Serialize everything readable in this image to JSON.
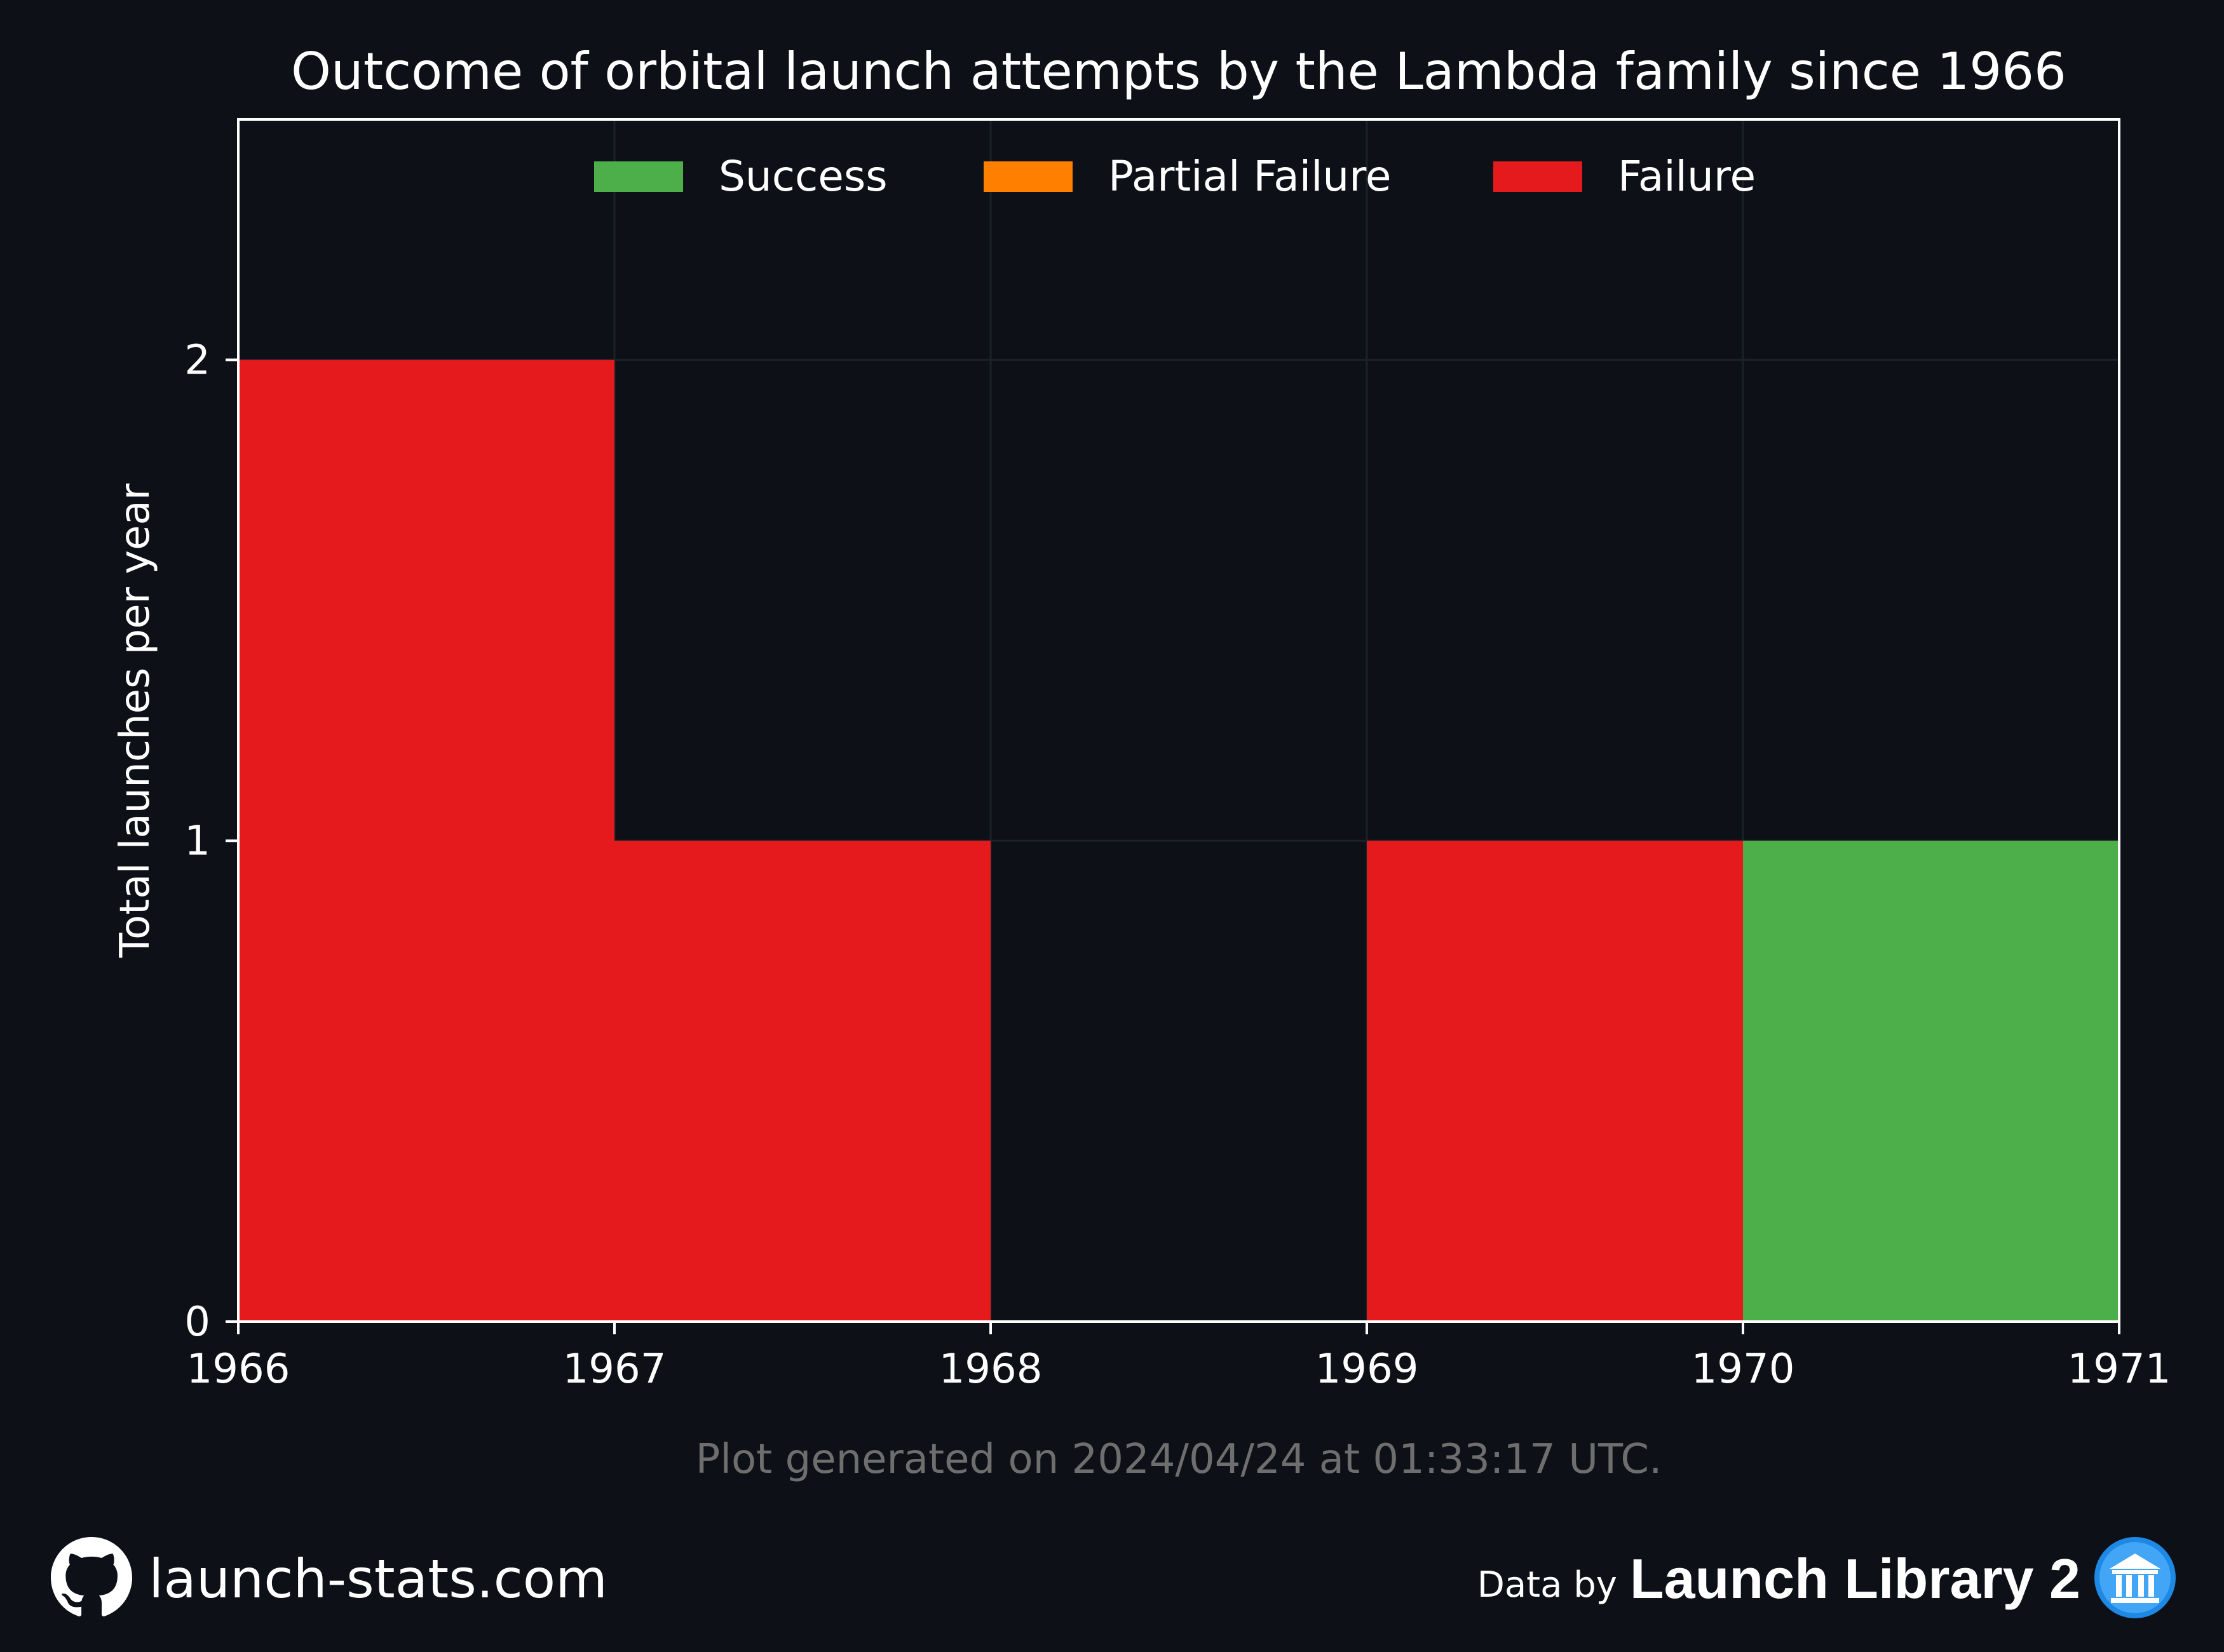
{
  "chart_data": {
    "type": "bar",
    "title": "Outcome of orbital launch attempts by the Lambda family since 1966",
    "ylabel": "Total launches per year",
    "xlabel": "",
    "categories": [
      "1966",
      "1967",
      "1968",
      "1969",
      "1970"
    ],
    "x_ticks": [
      "1966",
      "1967",
      "1968",
      "1969",
      "1970",
      "1971"
    ],
    "y_ticks": [
      "0",
      "1",
      "2"
    ],
    "xlim": [
      1966,
      1971
    ],
    "ylim": [
      0,
      2.5
    ],
    "stacked": true,
    "grid": true,
    "legend_position": "top-center",
    "series": [
      {
        "name": "Success",
        "color": "#4daf4a",
        "values": [
          0,
          0,
          0,
          0,
          1
        ]
      },
      {
        "name": "Partial Failure",
        "color": "#ff7f00",
        "values": [
          0,
          0,
          0,
          0,
          0
        ]
      },
      {
        "name": "Failure",
        "color": "#e41a1c",
        "values": [
          2,
          1,
          0,
          1,
          0
        ]
      }
    ]
  },
  "footnote": "Plot generated on 2024/04/24 at 01:33:17 UTC.",
  "footer": {
    "site": "launch-stats.com",
    "site_icon": "github-icon",
    "data_by": "Data by",
    "source": "Launch Library 2",
    "source_icon": "launch-library-logo-icon"
  },
  "colors": {
    "background": "#0d1117",
    "axes": "#ffffff",
    "grid": "#1c2129",
    "footnote": "#6e6e6e"
  }
}
